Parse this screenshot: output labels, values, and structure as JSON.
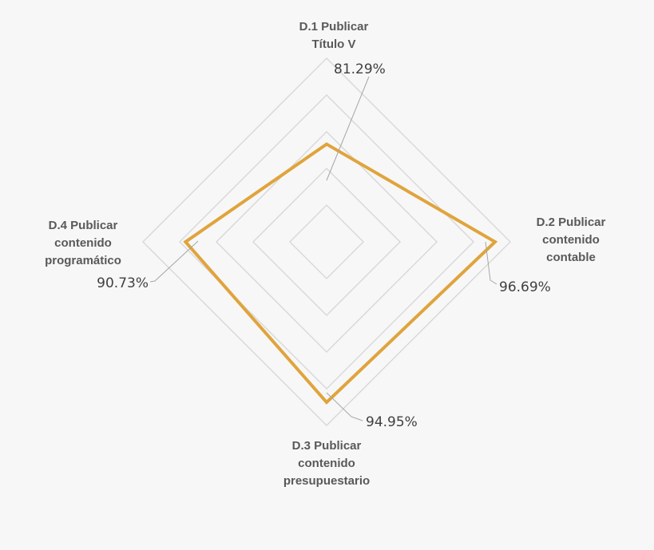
{
  "chart_data": {
    "type": "radar",
    "categories": [
      [
        "D.1 Publicar",
        "Título V"
      ],
      [
        "D.2 Publicar",
        "contenido",
        "contable"
      ],
      [
        "D.3 Publicar",
        "contenido",
        "presupuestario"
      ],
      [
        "D.4 Publicar",
        "contenido",
        "programático"
      ]
    ],
    "series": [
      {
        "values": [
          81.29,
          96.69,
          94.95,
          90.73
        ],
        "labels": [
          "81.29%",
          "96.69%",
          "94.95%",
          "90.73%"
        ],
        "color": "#e0a43c"
      }
    ],
    "range": [
      60,
      100
    ],
    "grid_rings": 5,
    "grid_color": "#d9d9d9",
    "leader_color": "#a6a6a6",
    "legend": "none"
  }
}
